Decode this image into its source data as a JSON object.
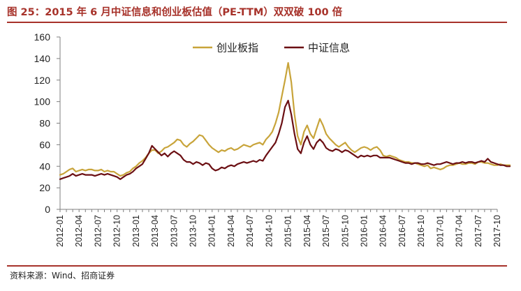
{
  "header": {
    "title": "图 25：2015 年 6 月中证信息和创业板估值（PE-TTM）双双破 100 倍"
  },
  "footer": {
    "source": "资料来源：Wind、招商证券"
  },
  "colors": {
    "title": "#a7322a",
    "series_a": "#c8a43a",
    "series_b": "#6b0f13"
  },
  "chart_data": {
    "type": "line",
    "title": "",
    "xlabel": "",
    "ylabel": "",
    "ylim": [
      0,
      160
    ],
    "yticks": [
      0,
      20,
      40,
      60,
      80,
      100,
      120,
      140,
      160
    ],
    "xticks": [
      "2012-01",
      "2012-04",
      "2012-07",
      "2012-10",
      "2013-01",
      "2013-04",
      "2013-07",
      "2013-10",
      "2014-01",
      "2014-04",
      "2014-07",
      "2014-10",
      "2015-01",
      "2015-04",
      "2015-07",
      "2015-10",
      "2016-01",
      "2016-04",
      "2016-07",
      "2016-10",
      "2017-01",
      "2017-04",
      "2017-07",
      "2017-10"
    ],
    "legend_position": "top",
    "series": [
      {
        "name": "创业板指",
        "x": [
          0,
          0.5,
          1,
          1.5,
          2,
          2.5,
          3,
          3.5,
          4,
          4.5,
          5,
          5.5,
          6,
          6.5,
          7,
          7.5,
          8,
          8.5,
          9,
          9.5,
          10,
          10.5,
          11,
          11.5,
          12,
          12.5,
          13,
          13.5,
          14,
          14.5,
          15,
          15.5,
          16,
          16.5,
          17,
          17.5,
          18,
          18.5,
          19,
          19.5,
          20,
          20.5,
          21,
          21.5,
          22,
          22.5,
          23,
          23.5,
          24,
          24.5,
          25,
          25.5,
          26,
          26.5,
          27,
          27.5,
          28,
          28.5,
          29,
          29.5,
          30,
          30.5,
          31,
          31.5,
          32,
          32.5,
          33,
          33.5,
          34,
          34.5,
          35,
          35.5,
          36,
          36.5,
          37,
          37.5,
          38,
          38.5,
          39,
          39.5,
          40,
          40.5,
          41,
          41.5,
          42,
          42.5,
          43,
          43.5,
          44,
          44.5,
          45,
          45.5,
          46,
          46.5,
          47,
          47.5,
          48,
          48.5,
          49,
          49.5,
          50,
          50.5,
          51,
          51.5,
          52,
          52.5,
          53,
          53.5,
          54,
          54.5,
          55,
          55.5,
          56,
          56.5,
          57,
          57.5,
          58,
          58.5,
          59,
          59.5,
          60,
          60.5,
          61,
          61.5,
          62,
          62.5,
          63,
          63.5,
          64,
          64.5,
          65,
          65.5,
          66,
          66.5,
          67,
          67.5,
          68,
          68.5,
          69,
          69.5,
          70,
          70.5,
          71
        ],
        "values": [
          32,
          33,
          35,
          37,
          38,
          35,
          36,
          37,
          36,
          37,
          37,
          36,
          36,
          37,
          35,
          36,
          35,
          35,
          33,
          31,
          32,
          34,
          35,
          38,
          40,
          43,
          45,
          48,
          52,
          55,
          55,
          52,
          54,
          57,
          58,
          60,
          62,
          65,
          64,
          60,
          58,
          61,
          63,
          66,
          69,
          68,
          64,
          60,
          57,
          55,
          53,
          55,
          54,
          56,
          57,
          55,
          56,
          58,
          60,
          59,
          58,
          60,
          61,
          62,
          60,
          65,
          68,
          72,
          80,
          90,
          105,
          120,
          136,
          118,
          88,
          68,
          60,
          72,
          78,
          70,
          66,
          75,
          84,
          78,
          70,
          66,
          63,
          60,
          58,
          60,
          62,
          58,
          55,
          53,
          55,
          57,
          58,
          57,
          55,
          57,
          58,
          55,
          50,
          49,
          50,
          49,
          48,
          46,
          45,
          44,
          44,
          43,
          43,
          42,
          41,
          40,
          41,
          38,
          39,
          38,
          37,
          38,
          40,
          41,
          41,
          42,
          43,
          42,
          42,
          43,
          43,
          42,
          44,
          44,
          43,
          43,
          42,
          41,
          41,
          42,
          41,
          41,
          41
        ]
      },
      {
        "name": "中证信息",
        "x": [
          0,
          0.5,
          1,
          1.5,
          2,
          2.5,
          3,
          3.5,
          4,
          4.5,
          5,
          5.5,
          6,
          6.5,
          7,
          7.5,
          8,
          8.5,
          9,
          9.5,
          10,
          10.5,
          11,
          11.5,
          12,
          12.5,
          13,
          13.5,
          14,
          14.5,
          15,
          15.5,
          16,
          16.5,
          17,
          17.5,
          18,
          18.5,
          19,
          19.5,
          20,
          20.5,
          21,
          21.5,
          22,
          22.5,
          23,
          23.5,
          24,
          24.5,
          25,
          25.5,
          26,
          26.5,
          27,
          27.5,
          28,
          28.5,
          29,
          29.5,
          30,
          30.5,
          31,
          31.5,
          32,
          32.5,
          33,
          33.5,
          34,
          34.5,
          35,
          35.5,
          36,
          36.5,
          37,
          37.5,
          38,
          38.5,
          39,
          39.5,
          40,
          40.5,
          41,
          41.5,
          42,
          42.5,
          43,
          43.5,
          44,
          44.5,
          45,
          45.5,
          46,
          46.5,
          47,
          47.5,
          48,
          48.5,
          49,
          49.5,
          50,
          50.5,
          51,
          51.5,
          52,
          52.5,
          53,
          53.5,
          54,
          54.5,
          55,
          55.5,
          56,
          56.5,
          57,
          57.5,
          58,
          58.5,
          59,
          59.5,
          60,
          60.5,
          61,
          61.5,
          62,
          62.5,
          63,
          63.5,
          64,
          64.5,
          65,
          65.5,
          66,
          66.5,
          67,
          67.5,
          68,
          68.5,
          69,
          69.5,
          70,
          70.5,
          71
        ],
        "values": [
          28,
          29,
          30,
          31,
          33,
          31,
          32,
          33,
          32,
          32,
          32,
          31,
          32,
          33,
          32,
          33,
          32,
          31,
          30,
          28,
          30,
          32,
          33,
          35,
          38,
          40,
          42,
          47,
          52,
          59,
          56,
          53,
          50,
          52,
          49,
          52,
          54,
          52,
          50,
          46,
          44,
          44,
          42,
          44,
          43,
          41,
          43,
          42,
          38,
          36,
          37,
          39,
          38,
          40,
          41,
          40,
          42,
          43,
          44,
          43,
          44,
          45,
          44,
          46,
          45,
          50,
          54,
          58,
          62,
          70,
          80,
          95,
          101,
          88,
          70,
          56,
          52,
          62,
          68,
          60,
          56,
          62,
          65,
          62,
          57,
          55,
          54,
          56,
          55,
          53,
          55,
          54,
          52,
          50,
          48,
          50,
          49,
          50,
          49,
          50,
          50,
          48,
          48,
          48,
          48,
          47,
          46,
          45,
          44,
          43,
          43,
          42,
          43,
          43,
          42,
          42,
          43,
          42,
          41,
          42,
          42,
          43,
          44,
          43,
          42,
          43,
          43,
          44,
          43,
          44,
          44,
          43,
          44,
          45,
          44,
          47,
          44,
          43,
          42,
          41,
          41,
          40,
          40
        ]
      }
    ]
  }
}
